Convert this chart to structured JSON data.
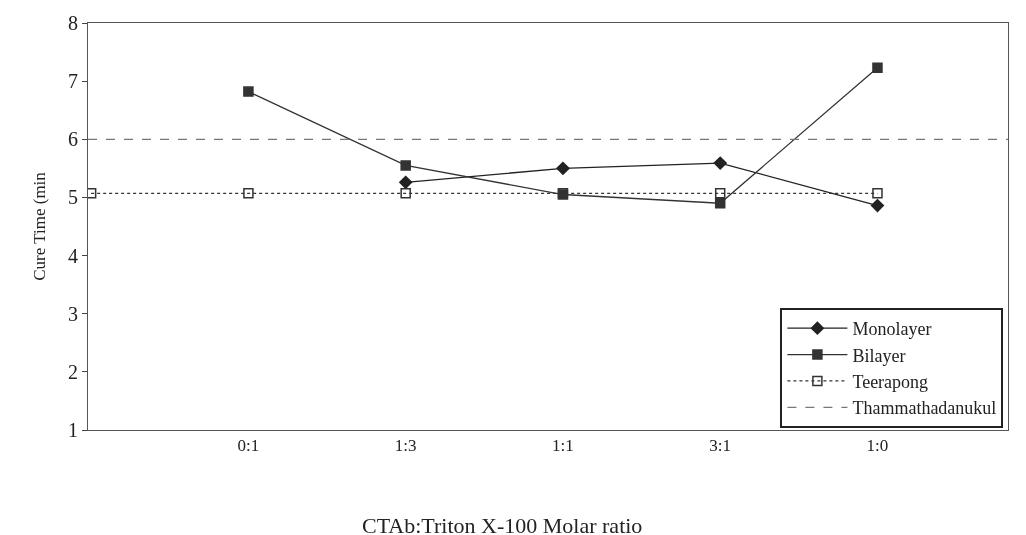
{
  "chart_data": {
    "type": "line",
    "xlabel": "CTAb:Triton X-100 Molar ratio",
    "ylabel": "Cure Time (min",
    "categories": [
      null,
      "0:1",
      "1:3",
      "1:1",
      "3:1",
      "1:0"
    ],
    "series": [
      {
        "name": "Monolayer",
        "color": "#222222",
        "marker": "diamond",
        "line_style": "solid",
        "values": [
          null,
          null,
          5.26,
          5.5,
          5.59,
          4.86
        ]
      },
      {
        "name": "Bilayer",
        "color": "#333333",
        "marker": "square",
        "line_style": "solid",
        "values": [
          null,
          6.82,
          5.55,
          5.05,
          4.9,
          7.23
        ]
      },
      {
        "name": "Teerapong",
        "color": "#333333",
        "marker": "square-open",
        "line_style": "dotted",
        "values": [
          5.07,
          5.07,
          5.07,
          5.07,
          5.07,
          5.07
        ]
      }
    ],
    "ref_lines": [
      {
        "axis": "y",
        "value": 6,
        "label": "Thammathadanukul",
        "color": "#777777",
        "line_style": "dashed"
      }
    ],
    "ylim": [
      1,
      8
    ],
    "yticks": [
      1,
      2,
      3,
      4,
      5,
      6,
      7,
      8
    ],
    "legend": "bottom right"
  }
}
